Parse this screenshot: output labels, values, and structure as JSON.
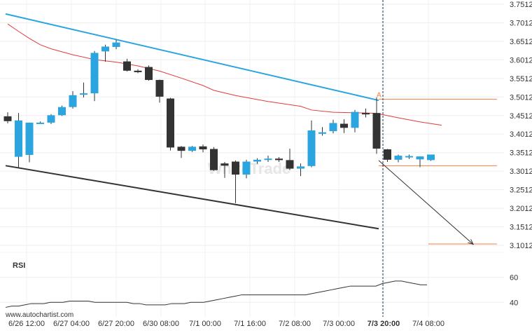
{
  "chart_data": {
    "type": "candlestick",
    "symbol": "",
    "watermark": "WhiteTrade",
    "footer": "www.autochartist.com",
    "current_time_label": "7/3 20:00",
    "price_axis": {
      "ticks": [
        "3.7512",
        "3.7012",
        "3.6512",
        "3.6012",
        "3.5512",
        "3.5012",
        "3.4512",
        "3.4012",
        "3.3512",
        "3.3012",
        "3.2512",
        "3.2012",
        "3.1512",
        "3.1012"
      ],
      "range": [
        3.09,
        3.75
      ]
    },
    "time_axis": {
      "ticks": [
        "6/26 12:00",
        "6/27 04:00",
        "6/27 20:00",
        "6/30 08:00",
        "7/1 00:00",
        "7/1 16:00",
        "7/2 08:00",
        "7/3 00:00",
        "7/3 20:00",
        "7/4 08:00"
      ]
    },
    "candles": [
      {
        "o": 3.449,
        "h": 3.46,
        "l": 3.43,
        "c": 3.436
      },
      {
        "o": 3.34,
        "h": 3.458,
        "l": 3.312,
        "c": 3.438
      },
      {
        "o": 3.345,
        "h": 3.432,
        "l": 3.325,
        "c": 3.432
      },
      {
        "o": 3.432,
        "h": 3.435,
        "l": 3.43,
        "c": 3.432
      },
      {
        "o": 3.432,
        "h": 3.455,
        "l": 3.428,
        "c": 3.452
      },
      {
        "o": 3.452,
        "h": 3.478,
        "l": 3.45,
        "c": 3.474
      },
      {
        "o": 3.474,
        "h": 3.517,
        "l": 3.47,
        "c": 3.506
      },
      {
        "o": 3.508,
        "h": 3.54,
        "l": 3.5,
        "c": 3.511
      },
      {
        "o": 3.511,
        "h": 3.625,
        "l": 3.49,
        "c": 3.62
      },
      {
        "o": 3.624,
        "h": 3.642,
        "l": 3.596,
        "c": 3.637
      },
      {
        "o": 3.636,
        "h": 3.655,
        "l": 3.63,
        "c": 3.648
      },
      {
        "o": 3.597,
        "h": 3.604,
        "l": 3.57,
        "c": 3.572
      },
      {
        "o": 3.572,
        "h": 3.576,
        "l": 3.565,
        "c": 3.568
      },
      {
        "o": 3.582,
        "h": 3.586,
        "l": 3.545,
        "c": 3.547
      },
      {
        "o": 3.547,
        "h": 3.548,
        "l": 3.486,
        "c": 3.502
      },
      {
        "o": 3.497,
        "h": 3.499,
        "l": 3.357,
        "c": 3.365
      },
      {
        "o": 3.367,
        "h": 3.369,
        "l": 3.337,
        "c": 3.356
      },
      {
        "o": 3.356,
        "h": 3.369,
        "l": 3.353,
        "c": 3.367
      },
      {
        "o": 3.368,
        "h": 3.373,
        "l": 3.352,
        "c": 3.36
      },
      {
        "o": 3.361,
        "h": 3.366,
        "l": 3.302,
        "c": 3.304
      },
      {
        "o": 3.322,
        "h": 3.326,
        "l": 3.283,
        "c": 3.316
      },
      {
        "o": 3.327,
        "h": 3.33,
        "l": 3.215,
        "c": 3.292
      },
      {
        "o": 3.292,
        "h": 3.332,
        "l": 3.282,
        "c": 3.327
      },
      {
        "o": 3.327,
        "h": 3.336,
        "l": 3.321,
        "c": 3.332
      },
      {
        "o": 3.333,
        "h": 3.343,
        "l": 3.326,
        "c": 3.335
      },
      {
        "o": 3.335,
        "h": 3.339,
        "l": 3.326,
        "c": 3.331
      },
      {
        "o": 3.331,
        "h": 3.362,
        "l": 3.304,
        "c": 3.308
      },
      {
        "o": 3.308,
        "h": 3.322,
        "l": 3.288,
        "c": 3.314
      },
      {
        "o": 3.315,
        "h": 3.438,
        "l": 3.312,
        "c": 3.411
      },
      {
        "o": 3.402,
        "h": 3.42,
        "l": 3.397,
        "c": 3.406
      },
      {
        "o": 3.409,
        "h": 3.44,
        "l": 3.403,
        "c": 3.431
      },
      {
        "o": 3.429,
        "h": 3.441,
        "l": 3.404,
        "c": 3.418
      },
      {
        "o": 3.418,
        "h": 3.466,
        "l": 3.406,
        "c": 3.461
      },
      {
        "o": 3.458,
        "h": 3.47,
        "l": 3.446,
        "c": 3.455
      },
      {
        "o": 3.458,
        "h": 3.5,
        "l": 3.348,
        "c": 3.362
      },
      {
        "o": 3.36,
        "h": 3.361,
        "l": 3.326,
        "c": 3.332
      },
      {
        "o": 3.332,
        "h": 3.346,
        "l": 3.325,
        "c": 3.343
      },
      {
        "o": 3.342,
        "h": 3.346,
        "l": 3.334,
        "c": 3.342
      },
      {
        "o": 3.333,
        "h": 3.341,
        "l": 3.312,
        "c": 3.341
      },
      {
        "o": 3.331,
        "h": 3.346,
        "l": 3.329,
        "c": 3.346
      }
    ],
    "moving_average": {
      "points": [
        [
          0,
          3.698
        ],
        [
          1,
          3.678
        ],
        [
          2,
          3.659
        ],
        [
          3,
          3.642
        ],
        [
          4,
          3.631
        ],
        [
          5,
          3.623
        ],
        [
          6,
          3.615
        ],
        [
          8,
          3.602
        ],
        [
          10,
          3.595
        ],
        [
          12,
          3.585
        ],
        [
          14,
          3.571
        ],
        [
          16,
          3.552
        ],
        [
          18,
          3.532
        ],
        [
          19,
          3.519
        ],
        [
          21,
          3.505
        ],
        [
          24,
          3.489
        ],
        [
          27,
          3.476
        ],
        [
          28,
          3.466
        ],
        [
          30,
          3.46
        ],
        [
          33,
          3.458
        ],
        [
          34,
          3.457
        ],
        [
          36,
          3.445
        ],
        [
          38,
          3.434
        ],
        [
          40,
          3.425
        ]
      ]
    },
    "upper_trendline": {
      "from": [
        0,
        3.725
      ],
      "to": [
        34,
        3.492
      ]
    },
    "lower_trendline": {
      "from": [
        0,
        3.316
      ],
      "to": [
        34,
        3.146
      ]
    },
    "resistance_level": {
      "value": 3.495,
      "from_index": 34
    },
    "support_level": {
      "value": 3.316,
      "from_index": 34
    },
    "target_level": {
      "value": 3.105,
      "from_index": 38
    },
    "projection": {
      "from": [
        34,
        3.33
      ],
      "to": [
        41,
        3.104
      ]
    },
    "pattern_marker": {
      "label": "A",
      "index": 34,
      "value": 3.497
    },
    "rsi": {
      "label": "RSI",
      "ticks": [
        "60",
        "40"
      ],
      "range": [
        34,
        62
      ],
      "values": [
        36,
        37,
        37,
        38,
        39,
        39,
        39,
        40,
        40,
        40,
        41,
        41,
        41,
        41,
        40,
        40,
        40,
        40,
        40,
        40,
        39,
        39,
        38,
        38,
        38,
        38,
        39,
        39,
        39,
        40,
        40,
        40,
        41,
        42,
        43,
        44,
        45,
        46,
        46,
        46,
        46,
        46,
        46,
        46,
        46,
        46,
        46,
        46,
        47,
        48,
        49,
        50,
        51,
        52,
        53,
        53,
        53,
        53,
        53,
        55,
        56,
        57,
        57,
        56,
        55,
        54,
        54
      ]
    }
  }
}
